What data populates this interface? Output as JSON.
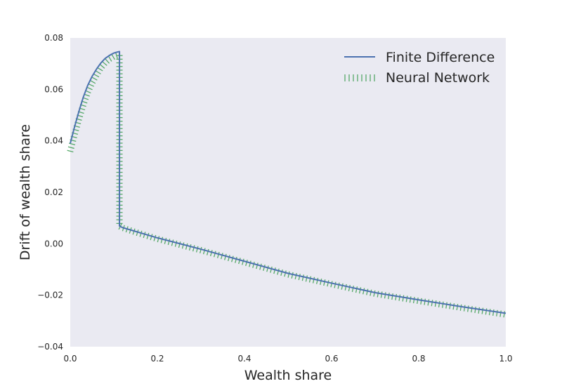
{
  "chart_data": {
    "type": "line",
    "title": "",
    "xlabel": "Wealth share",
    "ylabel": "Drift of wealth share",
    "xlim": [
      0.0,
      1.0
    ],
    "ylim": [
      -0.04,
      0.08
    ],
    "grid": false,
    "background": "#eaeaf2",
    "legend_position": "top-right",
    "x_ticks": [
      "0.0",
      "0.2",
      "0.4",
      "0.6",
      "0.8",
      "1.0"
    ],
    "x_tick_values": [
      0.0,
      0.2,
      0.4,
      0.6,
      0.8,
      1.0
    ],
    "y_ticks": [
      "−0.04",
      "−0.02",
      "0.00",
      "0.02",
      "0.04",
      "0.06",
      "0.08"
    ],
    "y_tick_values": [
      -0.04,
      -0.02,
      0.0,
      0.02,
      0.04,
      0.06,
      0.08
    ],
    "series": [
      {
        "name": "Finite Difference",
        "color": "#4c72b0",
        "style": "solid",
        "x": [
          0.0,
          0.01,
          0.02,
          0.03,
          0.04,
          0.05,
          0.06,
          0.07,
          0.08,
          0.09,
          0.1,
          0.11,
          0.113,
          0.113,
          0.12,
          0.15,
          0.2,
          0.3,
          0.4,
          0.5,
          0.6,
          0.7,
          0.8,
          0.9,
          1.0
        ],
        "y": [
          0.039,
          0.0455,
          0.0515,
          0.057,
          0.0615,
          0.065,
          0.0678,
          0.0702,
          0.072,
          0.0732,
          0.0741,
          0.0746,
          0.0747,
          0.0069,
          0.0063,
          0.0048,
          0.0023,
          -0.0021,
          -0.0068,
          -0.0115,
          -0.0153,
          -0.019,
          -0.0218,
          -0.0245,
          -0.027
        ]
      },
      {
        "name": "Neural Network",
        "color": "#55a868",
        "style": "hatched",
        "x": [
          0.0,
          0.01,
          0.02,
          0.03,
          0.04,
          0.05,
          0.06,
          0.07,
          0.08,
          0.09,
          0.1,
          0.11,
          0.113,
          0.113,
          0.12,
          0.15,
          0.2,
          0.3,
          0.4,
          0.5,
          0.6,
          0.7,
          0.8,
          0.9,
          1.0
        ],
        "y": [
          0.036,
          0.0425,
          0.0485,
          0.054,
          0.0588,
          0.0625,
          0.0655,
          0.0683,
          0.0703,
          0.0718,
          0.0728,
          0.0733,
          0.0734,
          0.0068,
          0.0062,
          0.0045,
          0.0019,
          -0.0025,
          -0.0072,
          -0.0119,
          -0.0157,
          -0.0194,
          -0.0222,
          -0.0249,
          -0.0275
        ]
      }
    ]
  }
}
